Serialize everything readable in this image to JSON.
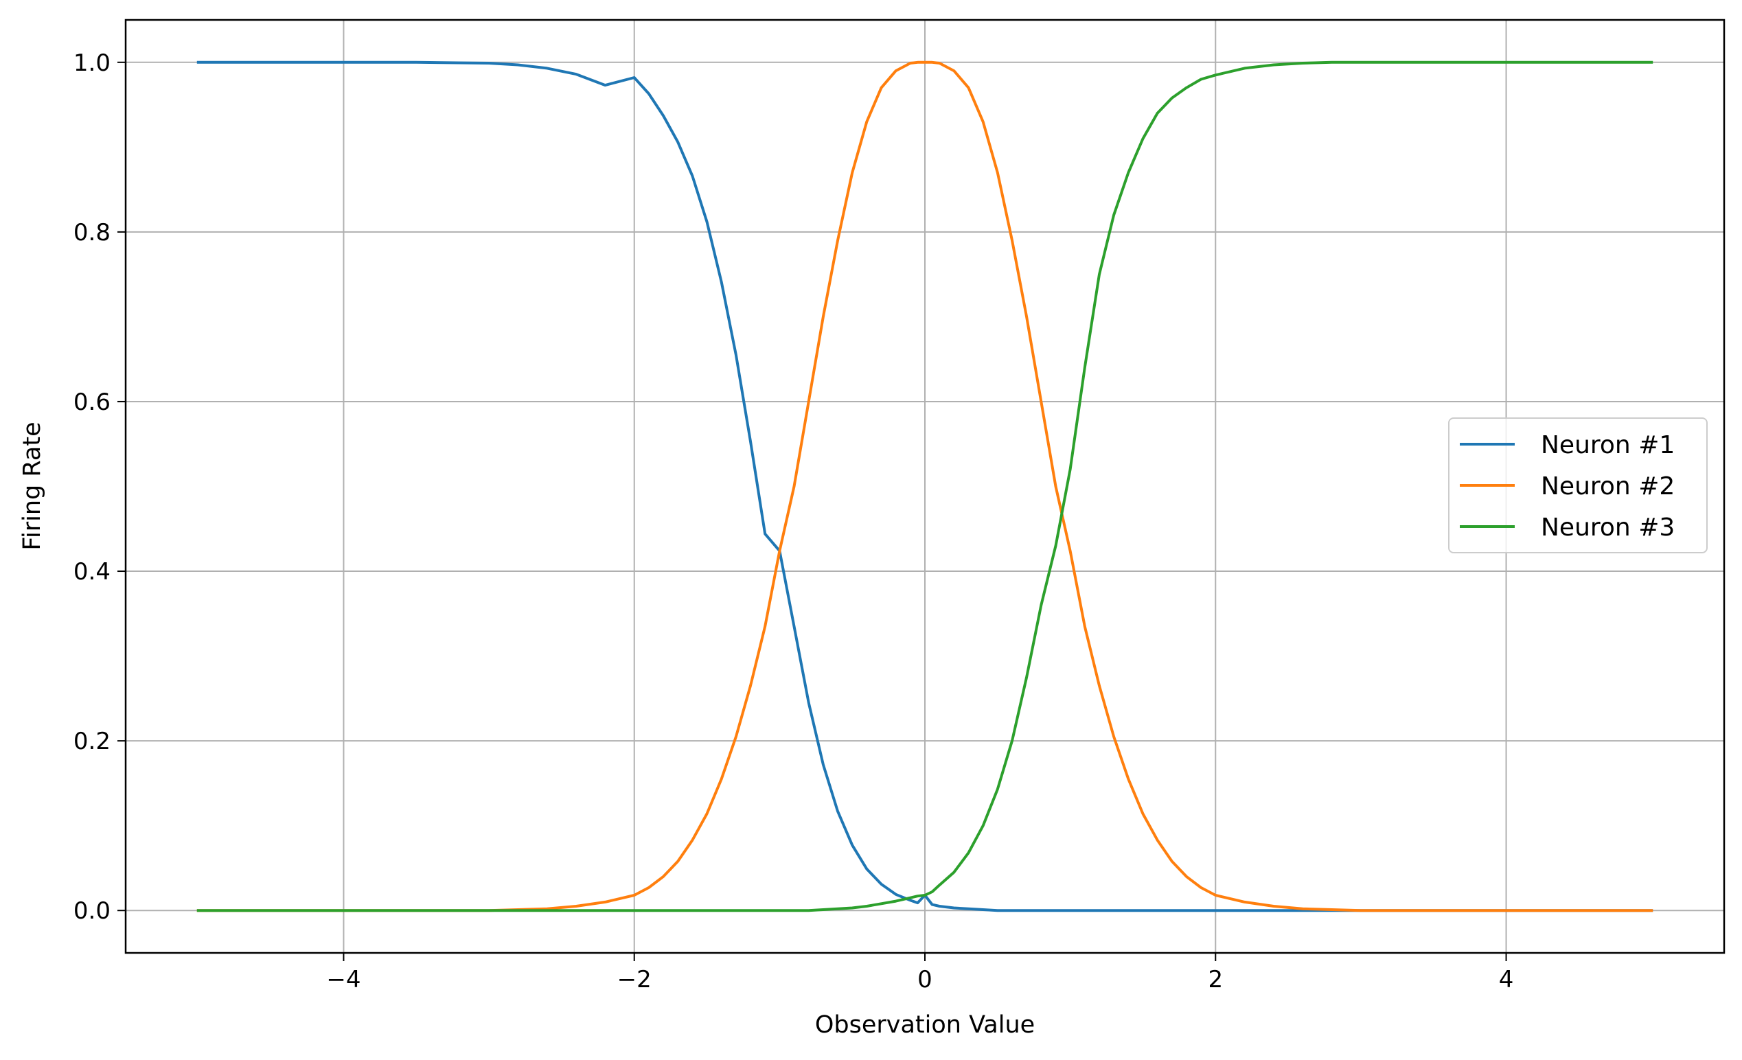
{
  "chart_data": {
    "type": "line",
    "title": "",
    "xlabel": "Observation Value",
    "ylabel": "Firing Rate",
    "xlim": [
      -5.5,
      5.5
    ],
    "ylim": [
      -0.05,
      1.05
    ],
    "xticks": [
      -4,
      -2,
      0,
      2,
      4
    ],
    "xtick_labels": [
      "−4",
      "−2",
      "0",
      "2",
      "4"
    ],
    "yticks": [
      0.0,
      0.2,
      0.4,
      0.6,
      0.8,
      1.0
    ],
    "ytick_labels": [
      "0.0",
      "0.2",
      "0.4",
      "0.6",
      "0.8",
      "1.0"
    ],
    "grid": true,
    "legend_position": "center-right",
    "x": [
      -5.0,
      -4.5,
      -4.0,
      -3.5,
      -3.0,
      -2.8,
      -2.6,
      -2.4,
      -2.2,
      -2.0,
      -1.9,
      -1.8,
      -1.7,
      -1.6,
      -1.5,
      -1.4,
      -1.3,
      -1.2,
      -1.1,
      -1.0,
      -0.9,
      -0.8,
      -0.7,
      -0.6,
      -0.5,
      -0.4,
      -0.3,
      -0.2,
      -0.1,
      -0.05,
      0.0,
      0.05,
      0.1,
      0.2,
      0.3,
      0.4,
      0.5,
      0.6,
      0.7,
      0.8,
      0.9,
      1.0,
      1.1,
      1.2,
      1.3,
      1.4,
      1.5,
      1.6,
      1.7,
      1.8,
      1.9,
      2.0,
      2.2,
      2.4,
      2.6,
      2.8,
      3.0,
      3.5,
      4.0,
      4.5,
      5.0
    ],
    "series": [
      {
        "name": "Neuron #1",
        "color": "#1f77b4",
        "values": [
          1.0,
          1.0,
          1.0,
          1.0,
          0.999,
          0.997,
          0.993,
          0.986,
          0.973,
          0.982,
          0.963,
          0.937,
          0.906,
          0.866,
          0.812,
          0.741,
          0.655,
          0.553,
          0.444,
          0.424,
          0.335,
          0.245,
          0.172,
          0.117,
          0.077,
          0.049,
          0.031,
          0.019,
          0.012,
          0.009,
          0.018,
          0.007,
          0.005,
          0.003,
          0.002,
          0.001,
          0.0,
          0.0,
          0.0,
          0.0,
          0.0,
          0.0,
          0.0,
          0.0,
          0.0,
          0.0,
          0.0,
          0.0,
          0.0,
          0.0,
          0.0,
          0.0,
          0.0,
          0.0,
          0.0,
          0.0,
          0.0,
          0.0,
          0.0,
          0.0,
          0.0
        ]
      },
      {
        "name": "Neuron #2",
        "color": "#ff7f0e",
        "values": [
          0.0,
          0.0,
          0.0,
          0.0,
          0.0,
          0.001,
          0.002,
          0.005,
          0.01,
          0.018,
          0.027,
          0.04,
          0.058,
          0.083,
          0.114,
          0.155,
          0.205,
          0.265,
          0.335,
          0.424,
          0.5,
          0.6,
          0.7,
          0.79,
          0.87,
          0.93,
          0.97,
          0.99,
          0.999,
          1.0,
          1.0,
          1.0,
          0.999,
          0.99,
          0.97,
          0.93,
          0.87,
          0.79,
          0.7,
          0.6,
          0.5,
          0.424,
          0.335,
          0.265,
          0.205,
          0.155,
          0.114,
          0.083,
          0.058,
          0.04,
          0.027,
          0.018,
          0.01,
          0.005,
          0.002,
          0.001,
          0.0,
          0.0,
          0.0,
          0.0,
          0.0
        ]
      },
      {
        "name": "Neuron #3",
        "color": "#2ca02c",
        "values": [
          0.0,
          0.0,
          0.0,
          0.0,
          0.0,
          0.0,
          0.0,
          0.0,
          0.0,
          0.0,
          0.0,
          0.0,
          0.0,
          0.0,
          0.0,
          0.0,
          0.0,
          0.0,
          0.0,
          0.0,
          0.0,
          0.0,
          0.001,
          0.002,
          0.003,
          0.005,
          0.008,
          0.011,
          0.015,
          0.017,
          0.018,
          0.022,
          0.03,
          0.045,
          0.068,
          0.1,
          0.143,
          0.2,
          0.275,
          0.36,
          0.43,
          0.52,
          0.64,
          0.75,
          0.82,
          0.87,
          0.91,
          0.94,
          0.958,
          0.97,
          0.98,
          0.985,
          0.993,
          0.997,
          0.999,
          1.0,
          1.0,
          1.0,
          1.0,
          1.0,
          1.0
        ]
      }
    ]
  }
}
